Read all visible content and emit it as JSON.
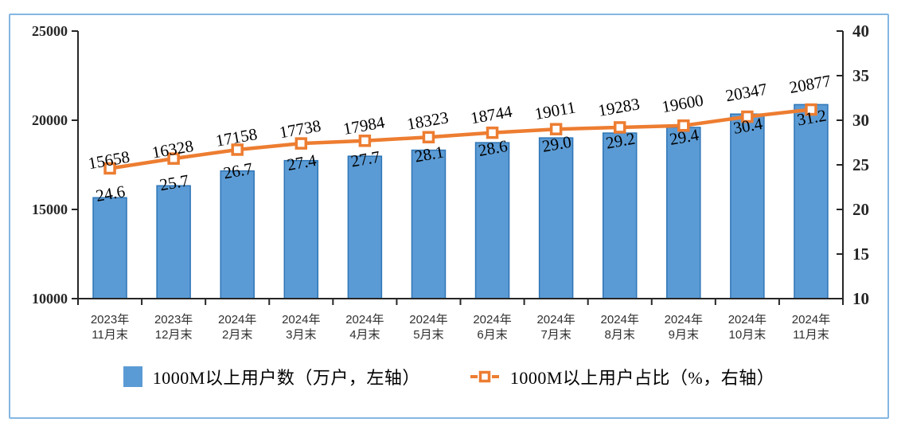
{
  "chart_data": {
    "type": "bar+line",
    "title": "",
    "xlabel": "",
    "ylabel_left": "万户",
    "ylabel_right": "%",
    "grid": false,
    "legend_position": "bottom",
    "categories": [
      [
        "2023年",
        "11月末"
      ],
      [
        "2023年",
        "12月末"
      ],
      [
        "2024年",
        "2月末"
      ],
      [
        "2024年",
        "3月末"
      ],
      [
        "2024年",
        "4月末"
      ],
      [
        "2024年",
        "5月末"
      ],
      [
        "2024年",
        "6月末"
      ],
      [
        "2024年",
        "7月末"
      ],
      [
        "2024年",
        "8月末"
      ],
      [
        "2024年",
        "9月末"
      ],
      [
        "2024年",
        "10月末"
      ],
      [
        "2024年",
        "11月末"
      ]
    ],
    "series": [
      {
        "name": "1000M以上用户数（万户，左轴）",
        "type": "bar",
        "axis": "left",
        "values": [
          15658,
          16328,
          17158,
          17738,
          17984,
          18323,
          18744,
          19011,
          19283,
          19600,
          20347,
          20877
        ]
      },
      {
        "name": "1000M以上用户占比（%，右轴）",
        "type": "line",
        "axis": "right",
        "values": [
          24.6,
          25.7,
          26.7,
          27.4,
          27.7,
          28.1,
          28.6,
          29.0,
          29.2,
          29.4,
          30.4,
          31.2
        ]
      }
    ],
    "left_axis": {
      "min": 10000,
      "max": 25000,
      "ticks": [
        "25000",
        "20000",
        "15000",
        "10000"
      ]
    },
    "right_axis": {
      "min": 10,
      "max": 40,
      "ticks": [
        "40",
        "35",
        "30",
        "25",
        "20",
        "15",
        "10"
      ]
    },
    "colors": {
      "bar_fill": "#5b9bd5",
      "bar_border": "#2e75b6",
      "line": "#ed7d31",
      "marker_fill": "#ffffff",
      "axis": "#262626",
      "label_text": "#000000",
      "category_text": "#303030",
      "panel_border": "#85b7e2"
    }
  }
}
